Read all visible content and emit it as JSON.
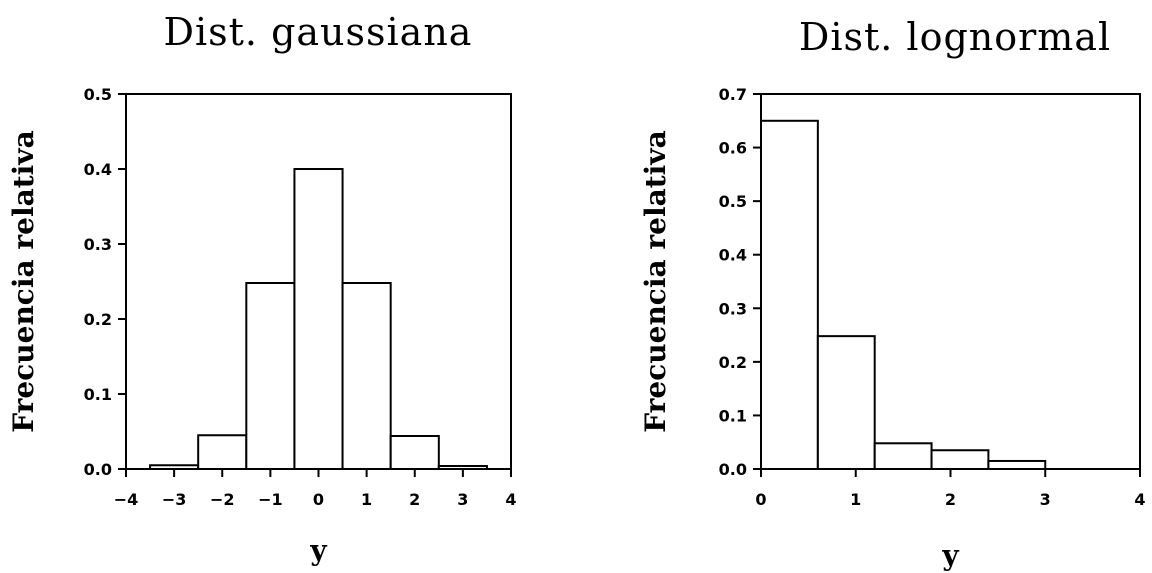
{
  "chart_data": [
    {
      "type": "bar",
      "title": "Dist. gaussiana",
      "xlabel": "y",
      "ylabel": "Frecuencia relativa",
      "xlim": [
        -4,
        4
      ],
      "ylim": [
        0,
        0.5
      ],
      "xticks": [
        "−4",
        "−3",
        "−2",
        "−1",
        "0",
        "1",
        "2",
        "3",
        "4"
      ],
      "yticks": [
        "0.0",
        "0.1",
        "0.2",
        "0.3",
        "0.4",
        "0.5"
      ],
      "bins": [
        {
          "x0": -3.5,
          "x1": -2.5,
          "value": 0.005
        },
        {
          "x0": -2.5,
          "x1": -1.5,
          "value": 0.045
        },
        {
          "x0": -1.5,
          "x1": -0.5,
          "value": 0.248
        },
        {
          "x0": -0.5,
          "x1": 0.5,
          "value": 0.4
        },
        {
          "x0": 0.5,
          "x1": 1.5,
          "value": 0.248
        },
        {
          "x0": 1.5,
          "x1": 2.5,
          "value": 0.044
        },
        {
          "x0": 2.5,
          "x1": 3.5,
          "value": 0.004
        }
      ]
    },
    {
      "type": "bar",
      "title": "Dist. lognormal",
      "xlabel": "y",
      "ylabel": "Frecuencia relativa",
      "xlim": [
        0,
        4
      ],
      "ylim": [
        0,
        0.7
      ],
      "xticks": [
        "0",
        "1",
        "2",
        "3",
        "4"
      ],
      "yticks": [
        "0.0",
        "0.1",
        "0.2",
        "0.3",
        "0.4",
        "0.5",
        "0.6",
        "0.7"
      ],
      "bins": [
        {
          "x0": 0.0,
          "x1": 0.6,
          "value": 0.65
        },
        {
          "x0": 0.6,
          "x1": 1.2,
          "value": 0.248
        },
        {
          "x0": 1.2,
          "x1": 1.8,
          "value": 0.048
        },
        {
          "x0": 1.8,
          "x1": 2.4,
          "value": 0.035
        },
        {
          "x0": 2.4,
          "x1": 3.0,
          "value": 0.015
        }
      ]
    }
  ]
}
